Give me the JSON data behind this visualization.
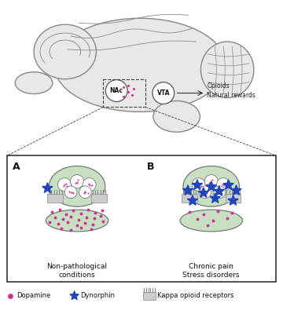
{
  "bg_color": "#ffffff",
  "brain_fill": "#e8e8e8",
  "brain_edge": "#888888",
  "synapse_fill": "#c8dfc4",
  "synapse_edge": "#777777",
  "dopamine_color": "#cc3399",
  "dynorphin_color": "#2244bb",
  "receptor_fill": "#cccccc",
  "receptor_edge": "#888888",
  "box_edge": "#333333",
  "text_color": "#222222",
  "label_A": "A",
  "label_B": "B",
  "label_nonpath": "Non-pathological\nconditions",
  "label_chronic": "Chronic pain\nStress disorders",
  "legend_dopamine": "Dopamine",
  "legend_dynorphin": "Dynorphin",
  "legend_receptor": "Kappa opioid receptors",
  "nac_label": "NAc",
  "vta_label": "VTA",
  "opioids_label": "Opioids\nNatural rewards"
}
